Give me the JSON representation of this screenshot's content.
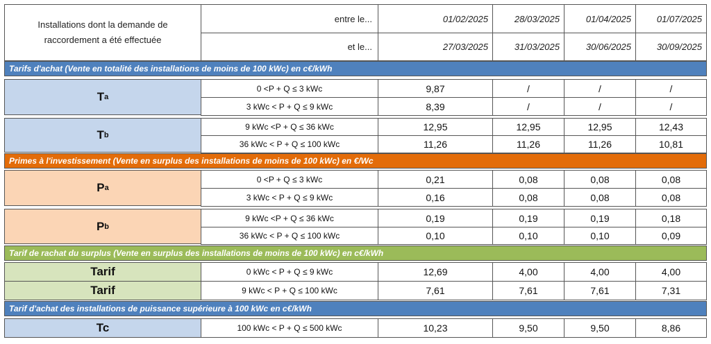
{
  "header": {
    "description": "Installations dont la demande de raccordement a été effectuée",
    "between_label": "entre le...",
    "and_label": "et le...",
    "periods": [
      {
        "start": "01/02/2025",
        "end": "27/03/2025"
      },
      {
        "start": "28/03/2025",
        "end": "31/03/2025"
      },
      {
        "start": "01/04/2025",
        "end": "30/06/2025"
      },
      {
        "start": "01/07/2025",
        "end": "30/09/2025"
      }
    ]
  },
  "sections": {
    "tarifs_achat": "Tarifs d'achat (Vente en totalité des installations de moins de 100 kWc) en c€/kWh",
    "primes": "Primes à l'investissement (Vente en surplus des installations de moins de 100 kWc) en €/Wc",
    "rachat_surplus": "Tarif de rachat du surplus (Vente en surplus des installations de moins de 100 kWc) en c€/kWh",
    "superieure": "Tarif d'achat des installations de puissance supérieure à 100 kWc en c€/kWh"
  },
  "groups": {
    "ta": {
      "label": "T",
      "sub": "a"
    },
    "tb": {
      "label": "T",
      "sub": "b"
    },
    "pa": {
      "label": "P",
      "sub": "a"
    },
    "pb": {
      "label": "P",
      "sub": "b"
    },
    "tarif1": "Tarif",
    "tarif2": "Tarif",
    "tc": "Tc"
  },
  "rows": [
    {
      "cond": "0 <P + Q ≤ 3 kWc",
      "values": [
        "9,87",
        "/",
        "/",
        "/"
      ]
    },
    {
      "cond": "3  kWc < P + Q ≤ 9 kWc",
      "values": [
        "8,39",
        "/",
        "/",
        "/"
      ]
    },
    {
      "cond": "9 kWc <P + Q ≤ 36 kWc",
      "values": [
        "12,95",
        "12,95",
        "12,95",
        "12,43"
      ]
    },
    {
      "cond": "36 kWc < P + Q ≤ 100 kWc",
      "values": [
        "11,26",
        "11,26",
        "11,26",
        "10,81"
      ]
    },
    {
      "cond": "0 <P + Q ≤ 3 kWc",
      "values": [
        "0,21",
        "0,08",
        "0,08",
        "0,08"
      ]
    },
    {
      "cond": "3  kWc < P + Q ≤ 9 kWc",
      "values": [
        "0,16",
        "0,08",
        "0,08",
        "0,08"
      ]
    },
    {
      "cond": "9 kWc <P + Q ≤ 36 kWc",
      "values": [
        "0,19",
        "0,19",
        "0,19",
        "0,18"
      ]
    },
    {
      "cond": "36 kWc < P + Q ≤ 100 kWc",
      "values": [
        "0,10",
        "0,10",
        "0,10",
        "0,09"
      ]
    },
    {
      "cond": "0 kWc < P + Q ≤ 9 kWc",
      "values": [
        "12,69",
        "4,00",
        "4,00",
        "4,00"
      ]
    },
    {
      "cond": "9 kWc < P + Q ≤ 100 kWc",
      "values": [
        "7,61",
        "7,61",
        "7,61",
        "7,31"
      ]
    },
    {
      "cond": "100 kWc < P + Q ≤ 500 kWc",
      "values": [
        "10,23",
        "9,50",
        "9,50",
        "8,86"
      ]
    }
  ],
  "colors": {
    "blue_band": "#4f81bd",
    "orange_band": "#e36c09",
    "green_band": "#9bbb59",
    "blue_label": "#c5d6ec",
    "orange_label": "#fbd5b5",
    "green_label": "#d7e4bd"
  }
}
